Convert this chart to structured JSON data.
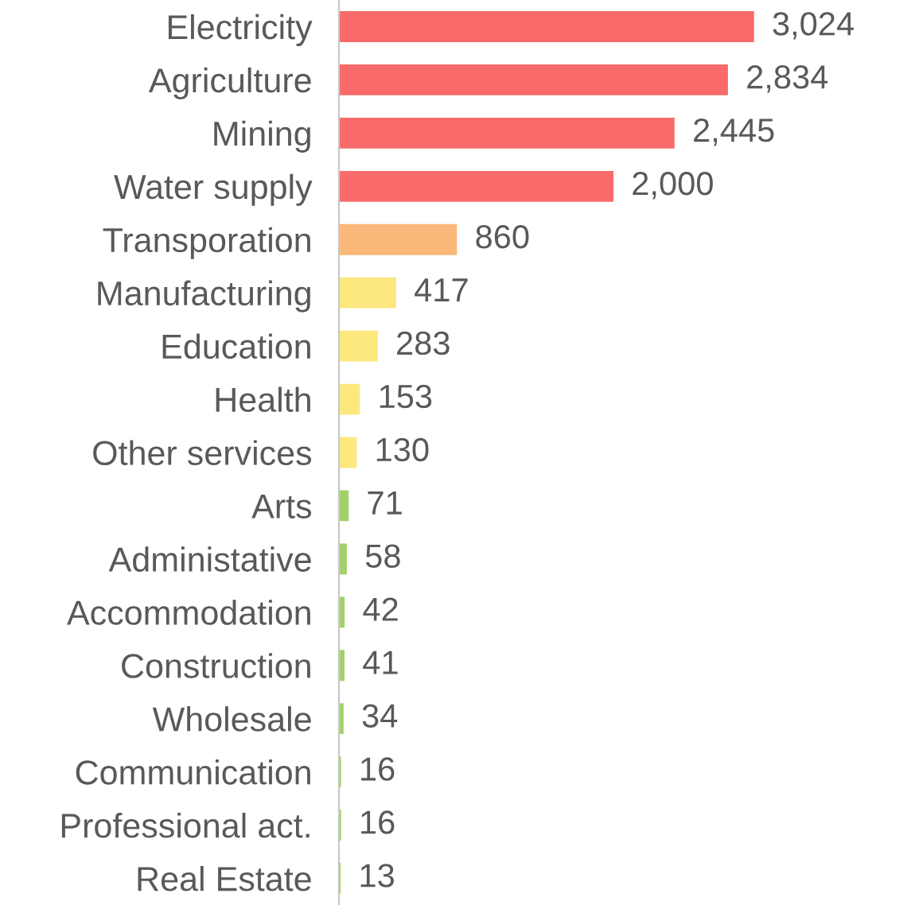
{
  "chart_data": {
    "type": "bar",
    "orientation": "horizontal",
    "grid": false,
    "legend": false,
    "categories": [
      "Electricity",
      "Agriculture",
      "Mining",
      "Water supply",
      "Transporation",
      "Manufacturing",
      "Education",
      "Health",
      "Other services",
      "Arts",
      "Administative",
      "Accommodation",
      "Construction",
      "Wholesale",
      "Communication",
      "Professional act.",
      "Real Estate"
    ],
    "values": [
      3024,
      2834,
      2445,
      2000,
      860,
      417,
      283,
      153,
      130,
      71,
      58,
      42,
      41,
      34,
      16,
      16,
      13
    ],
    "value_labels": [
      "3,024",
      "2,834",
      "2,445",
      "2,000",
      "860",
      "417",
      "283",
      "153",
      "130",
      "71",
      "58",
      "42",
      "41",
      "34",
      "16",
      "16",
      "13"
    ],
    "colors": [
      "#f96b6b",
      "#f96b6b",
      "#f96b6b",
      "#f96b6b",
      "#fbb87a",
      "#fde77f",
      "#fde77f",
      "#fde77f",
      "#fde77f",
      "#a4d06c",
      "#a4d06c",
      "#a4d06c",
      "#a4d06c",
      "#a4d06c",
      "#a4d06c",
      "#a4d06c",
      "#a4d06c"
    ]
  }
}
